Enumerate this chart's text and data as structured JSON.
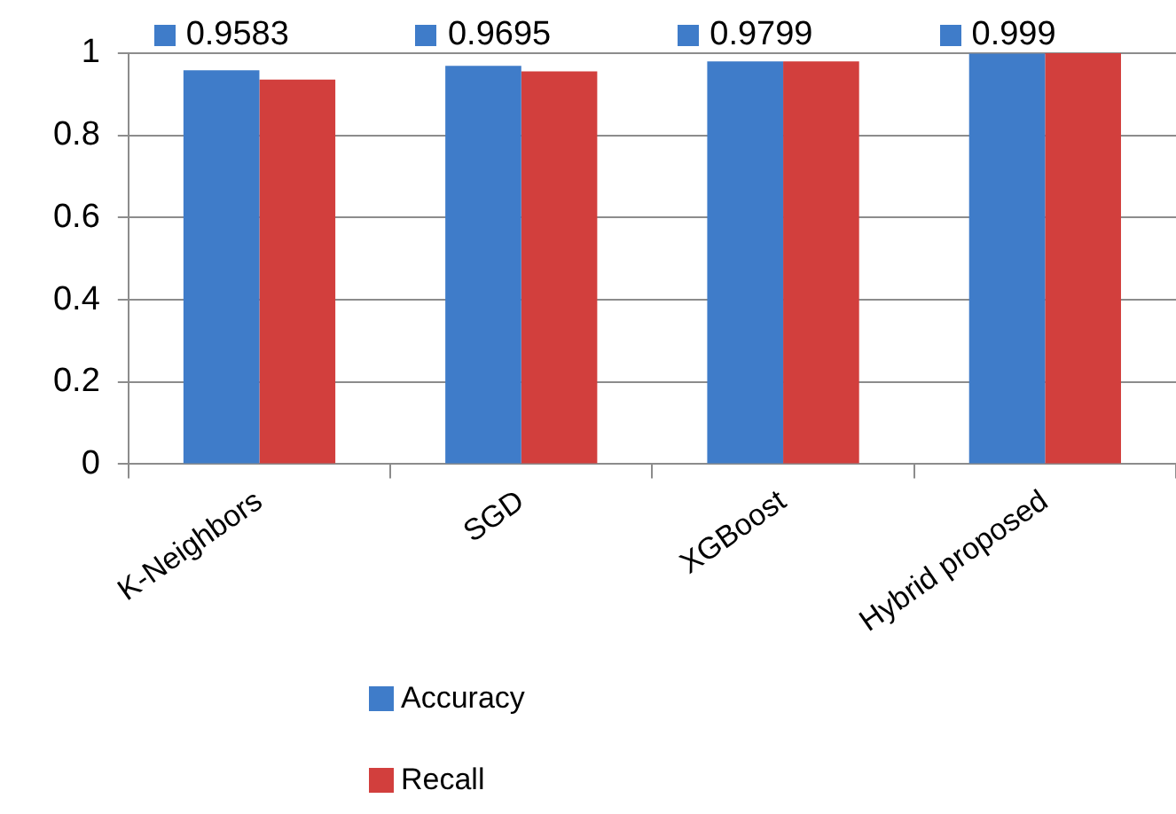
{
  "chart_data": {
    "type": "bar",
    "categories": [
      "K-Neighbors",
      "SGD",
      "XGBoost",
      "Hybrid proposed"
    ],
    "series": [
      {
        "name": "Accuracy",
        "color": "#3f7cc9",
        "values": [
          0.9583,
          0.9695,
          0.9799,
          0.999
        ],
        "value_labels": [
          "0.9583",
          "0.9695",
          "0.9799",
          "0.999"
        ]
      },
      {
        "name": "Recall",
        "color": "#d23f3d",
        "values": [
          0.936,
          0.956,
          0.98,
          1
        ]
      }
    ],
    "ylim": [
      0,
      1
    ],
    "yticks": [
      0,
      0.2,
      0.4,
      0.6,
      0.8,
      1
    ],
    "grid": "y",
    "legend": "bottom"
  }
}
